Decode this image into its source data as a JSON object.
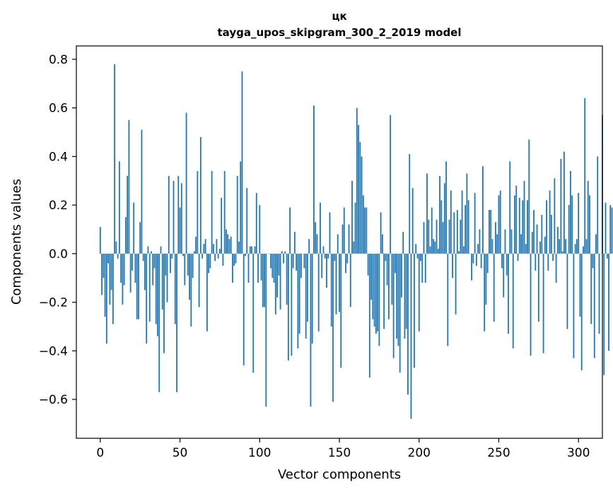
{
  "chart_data": {
    "type": "bar",
    "title": "цк",
    "subtitle": "tayga_upos_skipgram_300_2_2019 model",
    "xlabel": "Vector components",
    "ylabel": "Components values",
    "xlim": [
      -15,
      315
    ],
    "ylim": [
      -0.76,
      0.855
    ],
    "xticks": [
      0,
      50,
      100,
      150,
      200,
      250,
      300
    ],
    "xtick_labels": [
      "0",
      "50",
      "100",
      "150",
      "200",
      "250",
      "300"
    ],
    "yticks": [
      -0.6,
      -0.4,
      -0.2,
      0.0,
      0.2,
      0.4,
      0.6,
      0.8
    ],
    "ytick_labels": [
      "−0.6",
      "−0.4",
      "−0.2",
      "0.0",
      "0.2",
      "0.4",
      "0.6",
      "0.8"
    ],
    "bar_color": "#1f77b4",
    "values": [
      0.11,
      -0.17,
      -0.1,
      -0.26,
      -0.37,
      -0.04,
      -0.21,
      -0.15,
      -0.29,
      0.78,
      0.05,
      -0.02,
      0.38,
      -0.12,
      -0.21,
      -0.13,
      0.15,
      0.32,
      0.55,
      -0.16,
      -0.07,
      0.21,
      -0.12,
      -0.27,
      -0.27,
      0.13,
      0.51,
      -0.03,
      -0.15,
      -0.37,
      0.03,
      -0.28,
      0.01,
      -0.13,
      -0.06,
      -0.29,
      -0.34,
      -0.57,
      0.03,
      -0.23,
      -0.41,
      -0.09,
      -0.2,
      0.32,
      -0.08,
      -0.02,
      0.3,
      -0.29,
      -0.57,
      0.32,
      0.19,
      0.29,
      -0.01,
      -0.13,
      0.58,
      -0.09,
      -0.19,
      -0.3,
      -0.1,
      0.01,
      0.07,
      0.34,
      -0.22,
      0.48,
      -0.02,
      0.04,
      0.06,
      -0.32,
      -0.08,
      -0.06,
      0.34,
      0.04,
      -0.03,
      0.06,
      -0.02,
      0.02,
      0.23,
      -0.05,
      0.34,
      0.1,
      0.08,
      0.06,
      0.07,
      -0.12,
      -0.05,
      -0.04,
      0.32,
      0.05,
      0.38,
      0.75,
      -0.46,
      -0.01,
      0.27,
      -0.12,
      0.03,
      0.03,
      -0.49,
      0.03,
      0.25,
      -0.12,
      0.2,
      -0.11,
      -0.22,
      -0.22,
      -0.63,
      0.0,
      0.0,
      -0.06,
      -0.1,
      -0.12,
      -0.25,
      -0.18,
      -0.09,
      -0.23,
      0.01,
      -0.04,
      0.01,
      -0.21,
      -0.44,
      0.19,
      -0.42,
      -0.06,
      0.09,
      -0.07,
      -0.39,
      -0.33,
      -0.1,
      0.0,
      -0.06,
      -0.35,
      -0.28,
      0.06,
      -0.63,
      -0.37,
      0.61,
      0.13,
      0.08,
      -0.32,
      0.21,
      -0.1,
      0.03,
      -0.02,
      -0.14,
      -0.02,
      0.17,
      -0.3,
      -0.61,
      -0.03,
      -0.25,
      0.08,
      -0.24,
      -0.47,
      0.12,
      0.19,
      -0.08,
      -0.04,
      0.12,
      -0.22,
      0.3,
      0.05,
      0.21,
      0.6,
      0.53,
      0.46,
      0.4,
      0.24,
      0.19,
      0.19,
      -0.09,
      -0.51,
      -0.19,
      -0.27,
      -0.3,
      -0.33,
      -0.32,
      -0.38,
      0.17,
      0.08,
      -0.31,
      -0.03,
      -0.13,
      -0.27,
      0.57,
      -0.21,
      -0.43,
      -0.08,
      -0.35,
      -0.38,
      -0.49,
      -0.18,
      0.09,
      -0.35,
      -0.31,
      -0.58,
      0.41,
      -0.68,
      0.27,
      -0.47,
      0.04,
      -0.02,
      -0.32,
      -0.03,
      -0.12,
      0.13,
      -0.12,
      0.33,
      0.14,
      0.03,
      0.19,
      0.06,
      0.05,
      0.14,
      0.02,
      0.32,
      0.22,
      0.13,
      0.29,
      0.38,
      -0.38,
      0.14,
      0.26,
      -0.1,
      0.17,
      -0.25,
      0.18,
      0.01,
      0.14,
      0.26,
      0.03,
      0.2,
      0.33,
      0.22,
      0.0,
      -0.11,
      -0.04,
      0.25,
      -0.05,
      0.04,
      0.1,
      -0.06,
      0.36,
      -0.32,
      -0.21,
      -0.08,
      0.18,
      0.18,
      0.06,
      -0.28,
      0.13,
      0.08,
      0.24,
      0.26,
      -0.06,
      -0.18,
      0.1,
      -0.09,
      -0.33,
      0.38,
      0.1,
      -0.39,
      0.24,
      0.28,
      -0.03,
      0.23,
      0.08,
      0.22,
      0.3,
      0.04,
      0.22,
      0.47,
      -0.42,
      0.09,
      0.18,
      -0.07,
      0.12,
      -0.28,
      0.05,
      0.16,
      -0.41,
      0.07,
      0.22,
      -0.07,
      0.26,
      0.16,
      -0.03,
      0.31,
      -0.12,
      0.11,
      0.06,
      0.39,
      0.01,
      0.42,
      0.06,
      -0.31,
      0.2,
      0.34,
      0.24,
      -0.43,
      0.04,
      0.06,
      0.25,
      -0.26,
      -0.48,
      0.03,
      0.64,
      0.06,
      0.3,
      0.24,
      -0.29,
      -0.06,
      -0.43,
      0.08,
      0.4,
      -0.33,
      0.0,
      0.57,
      -0.5,
      0.21,
      -0.02,
      -0.4,
      0.2,
      0.19
    ]
  }
}
